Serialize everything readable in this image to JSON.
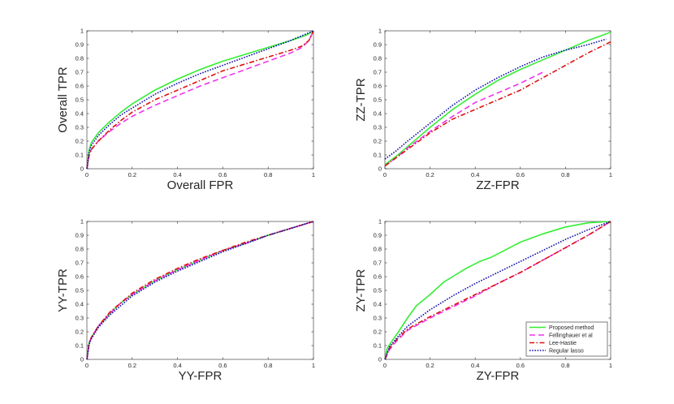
{
  "chart_data": [
    {
      "type": "line",
      "xlabel": "Overall FPR",
      "ylabel": "Overall TPR",
      "xlim": [
        0,
        1
      ],
      "ylim": [
        0,
        1
      ],
      "series": [
        {
          "name": "Proposed method",
          "x": [
            0,
            0.01,
            0.02,
            0.05,
            0.1,
            0.15,
            0.2,
            0.3,
            0.4,
            0.5,
            0.6,
            0.7,
            0.8,
            0.9,
            0.97,
            1
          ],
          "y": [
            0,
            0.14,
            0.19,
            0.26,
            0.34,
            0.41,
            0.47,
            0.57,
            0.65,
            0.72,
            0.78,
            0.83,
            0.88,
            0.93,
            0.97,
            1
          ]
        },
        {
          "name": "Fellinghauer et al",
          "x": [
            0,
            0.01,
            0.02,
            0.05,
            0.1,
            0.15,
            0.2,
            0.3,
            0.4,
            0.5,
            0.6,
            0.7,
            0.8,
            0.9,
            0.95,
            0.98,
            1
          ],
          "y": [
            0,
            0.1,
            0.14,
            0.2,
            0.27,
            0.33,
            0.38,
            0.46,
            0.53,
            0.6,
            0.66,
            0.72,
            0.78,
            0.84,
            0.88,
            0.93,
            1
          ]
        },
        {
          "name": "Lee-Hastie",
          "x": [
            0,
            0.01,
            0.02,
            0.05,
            0.1,
            0.15,
            0.2,
            0.3,
            0.4,
            0.5,
            0.6,
            0.7,
            0.8,
            0.9,
            0.95,
            0.98,
            1
          ],
          "y": [
            0,
            0.1,
            0.14,
            0.2,
            0.28,
            0.35,
            0.41,
            0.5,
            0.57,
            0.64,
            0.71,
            0.76,
            0.81,
            0.86,
            0.89,
            0.93,
            1
          ]
        },
        {
          "name": "Regular lasso",
          "x": [
            0,
            0.01,
            0.02,
            0.05,
            0.1,
            0.15,
            0.2,
            0.3,
            0.4,
            0.5,
            0.6,
            0.7,
            0.8,
            0.9,
            1
          ],
          "y": [
            0,
            0.12,
            0.17,
            0.24,
            0.32,
            0.39,
            0.44,
            0.54,
            0.62,
            0.69,
            0.75,
            0.81,
            0.87,
            0.93,
            1
          ]
        }
      ]
    },
    {
      "type": "line",
      "xlabel": "ZZ-FPR",
      "ylabel": "ZZ-TPR",
      "xlim": [
        0,
        1
      ],
      "ylim": [
        0,
        1
      ],
      "series": [
        {
          "name": "Proposed method",
          "x": [
            0,
            0.05,
            0.1,
            0.2,
            0.3,
            0.4,
            0.5,
            0.6,
            0.7,
            0.8,
            0.9,
            1
          ],
          "y": [
            0.03,
            0.09,
            0.16,
            0.3,
            0.43,
            0.54,
            0.64,
            0.72,
            0.79,
            0.86,
            0.93,
            0.99
          ]
        },
        {
          "name": "Fellinghauer et al",
          "x": [
            0,
            0.05,
            0.1,
            0.2,
            0.3,
            0.4,
            0.5,
            0.6,
            0.7
          ],
          "y": [
            0.02,
            0.08,
            0.15,
            0.27,
            0.38,
            0.48,
            0.55,
            0.62,
            0.7
          ]
        },
        {
          "name": "Lee-Hastie",
          "x": [
            0,
            0.05,
            0.1,
            0.2,
            0.3,
            0.4,
            0.5,
            0.6,
            0.7,
            0.8,
            0.9,
            1
          ],
          "y": [
            0.02,
            0.08,
            0.14,
            0.26,
            0.36,
            0.43,
            0.5,
            0.57,
            0.66,
            0.75,
            0.84,
            0.92
          ]
        },
        {
          "name": "Regular lasso",
          "x": [
            0,
            0.05,
            0.1,
            0.2,
            0.3,
            0.4,
            0.5,
            0.6,
            0.7,
            0.8,
            0.9,
            0.98
          ],
          "y": [
            0.07,
            0.13,
            0.2,
            0.33,
            0.46,
            0.57,
            0.66,
            0.74,
            0.81,
            0.86,
            0.9,
            0.94
          ]
        }
      ]
    },
    {
      "type": "line",
      "xlabel": "YY-FPR",
      "ylabel": "YY-TPR",
      "xlim": [
        0,
        1
      ],
      "ylim": [
        0,
        1
      ],
      "series": [
        {
          "name": "Proposed method",
          "x": [
            0,
            0.01,
            0.02,
            0.05,
            0.1,
            0.15,
            0.2,
            0.3,
            0.4,
            0.5,
            0.6,
            0.7,
            0.8,
            0.9,
            1
          ],
          "y": [
            0,
            0.12,
            0.16,
            0.24,
            0.33,
            0.41,
            0.47,
            0.57,
            0.65,
            0.72,
            0.79,
            0.84,
            0.9,
            0.95,
            1
          ]
        },
        {
          "name": "Fellinghauer et al",
          "x": [
            0,
            0.01,
            0.02,
            0.05,
            0.1,
            0.15,
            0.2,
            0.3,
            0.4,
            0.5,
            0.6,
            0.7,
            0.8,
            0.9,
            1
          ],
          "y": [
            0,
            0.12,
            0.16,
            0.24,
            0.33,
            0.41,
            0.47,
            0.57,
            0.65,
            0.72,
            0.79,
            0.84,
            0.9,
            0.95,
            1
          ]
        },
        {
          "name": "Lee-Hastie",
          "x": [
            0,
            0.01,
            0.02,
            0.05,
            0.1,
            0.15,
            0.2,
            0.3,
            0.4,
            0.5,
            0.6,
            0.7,
            0.8,
            0.9,
            1
          ],
          "y": [
            0,
            0.12,
            0.16,
            0.24,
            0.34,
            0.41,
            0.48,
            0.58,
            0.66,
            0.73,
            0.79,
            0.85,
            0.9,
            0.95,
            1
          ]
        },
        {
          "name": "Regular lasso",
          "x": [
            0,
            0.01,
            0.02,
            0.05,
            0.1,
            0.15,
            0.2,
            0.3,
            0.4,
            0.5,
            0.6,
            0.7,
            0.8,
            0.9,
            1
          ],
          "y": [
            0,
            0.11,
            0.15,
            0.23,
            0.32,
            0.39,
            0.46,
            0.56,
            0.64,
            0.71,
            0.78,
            0.84,
            0.9,
            0.95,
            1
          ]
        }
      ]
    },
    {
      "type": "line",
      "xlabel": "ZY-FPR",
      "ylabel": "ZY-TPR",
      "xlim": [
        0,
        1
      ],
      "ylim": [
        0,
        1
      ],
      "legend_position": "bottom-right",
      "series": [
        {
          "name": "Proposed method",
          "x": [
            0,
            0.01,
            0.03,
            0.06,
            0.1,
            0.14,
            0.2,
            0.26,
            0.3,
            0.36,
            0.42,
            0.47,
            0.53,
            0.6,
            0.7,
            0.8,
            0.9,
            1
          ],
          "y": [
            0,
            0.08,
            0.13,
            0.2,
            0.3,
            0.39,
            0.47,
            0.56,
            0.6,
            0.66,
            0.71,
            0.74,
            0.79,
            0.85,
            0.91,
            0.96,
            0.99,
            1
          ]
        },
        {
          "name": "Fellinghauer et al",
          "x": [
            0,
            0.02,
            0.05,
            0.1,
            0.2,
            0.3,
            0.4,
            0.5,
            0.6,
            0.7,
            0.8,
            0.9,
            1
          ],
          "y": [
            0,
            0.07,
            0.13,
            0.21,
            0.3,
            0.38,
            0.46,
            0.55,
            0.63,
            0.72,
            0.81,
            0.9,
            1
          ]
        },
        {
          "name": "Lee-Hastie",
          "x": [
            0,
            0.02,
            0.05,
            0.1,
            0.2,
            0.3,
            0.4,
            0.5,
            0.6,
            0.7,
            0.8,
            0.9,
            1
          ],
          "y": [
            0,
            0.08,
            0.14,
            0.22,
            0.31,
            0.39,
            0.47,
            0.55,
            0.63,
            0.72,
            0.81,
            0.9,
            1
          ]
        },
        {
          "name": "Regular lasso",
          "x": [
            0,
            0.02,
            0.05,
            0.1,
            0.2,
            0.3,
            0.4,
            0.5,
            0.6,
            0.7,
            0.8,
            0.9,
            1
          ],
          "y": [
            0,
            0.09,
            0.15,
            0.24,
            0.36,
            0.46,
            0.55,
            0.63,
            0.71,
            0.79,
            0.87,
            0.94,
            1
          ]
        }
      ]
    }
  ],
  "legend": [
    {
      "label": "Proposed method"
    },
    {
      "label": "Fellinghauer et al"
    },
    {
      "label": "Lee-Hastie"
    },
    {
      "label": "Regular lasso"
    }
  ],
  "colors": {
    "Proposed method": "#33ee33",
    "Fellinghauer et al": "#ee33ee",
    "Lee-Hastie": "#dd1111",
    "Regular lasso": "#1111aa"
  },
  "dash": {
    "Proposed method": "",
    "Fellinghauer et al": "7,4",
    "Lee-Hastie": "6,2.5,1.5,2.5",
    "Regular lasso": "1.6,1.6"
  },
  "ticks": [
    "0",
    "0.1",
    "0.2",
    "0.3",
    "0.4",
    "0.5",
    "0.6",
    "0.7",
    "0.8",
    "0.9",
    "1"
  ],
  "xticks": [
    "0",
    "0.2",
    "0.4",
    "0.6",
    "0.8",
    "1"
  ]
}
